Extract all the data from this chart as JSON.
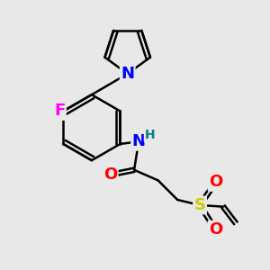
{
  "background_color": "#e8e8e8",
  "bond_color": "#000000",
  "atom_colors": {
    "N": "#0000ff",
    "O": "#ff0000",
    "F": "#ff00ff",
    "S": "#cccc00",
    "H": "#008080",
    "C": "#000000"
  },
  "bond_width": 1.8,
  "font_size_atom": 13,
  "font_size_small": 10,
  "figsize": [
    3.0,
    3.0
  ],
  "dpi": 100
}
